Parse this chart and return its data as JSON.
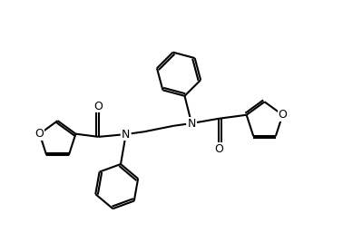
{
  "bg": "#ffffff",
  "lc": "#000000",
  "lw": 1.5,
  "fs": 9,
  "doff": 0.072,
  "xlim": [
    0.3,
    9.7
  ],
  "ylim": [
    0.8,
    6.8
  ]
}
